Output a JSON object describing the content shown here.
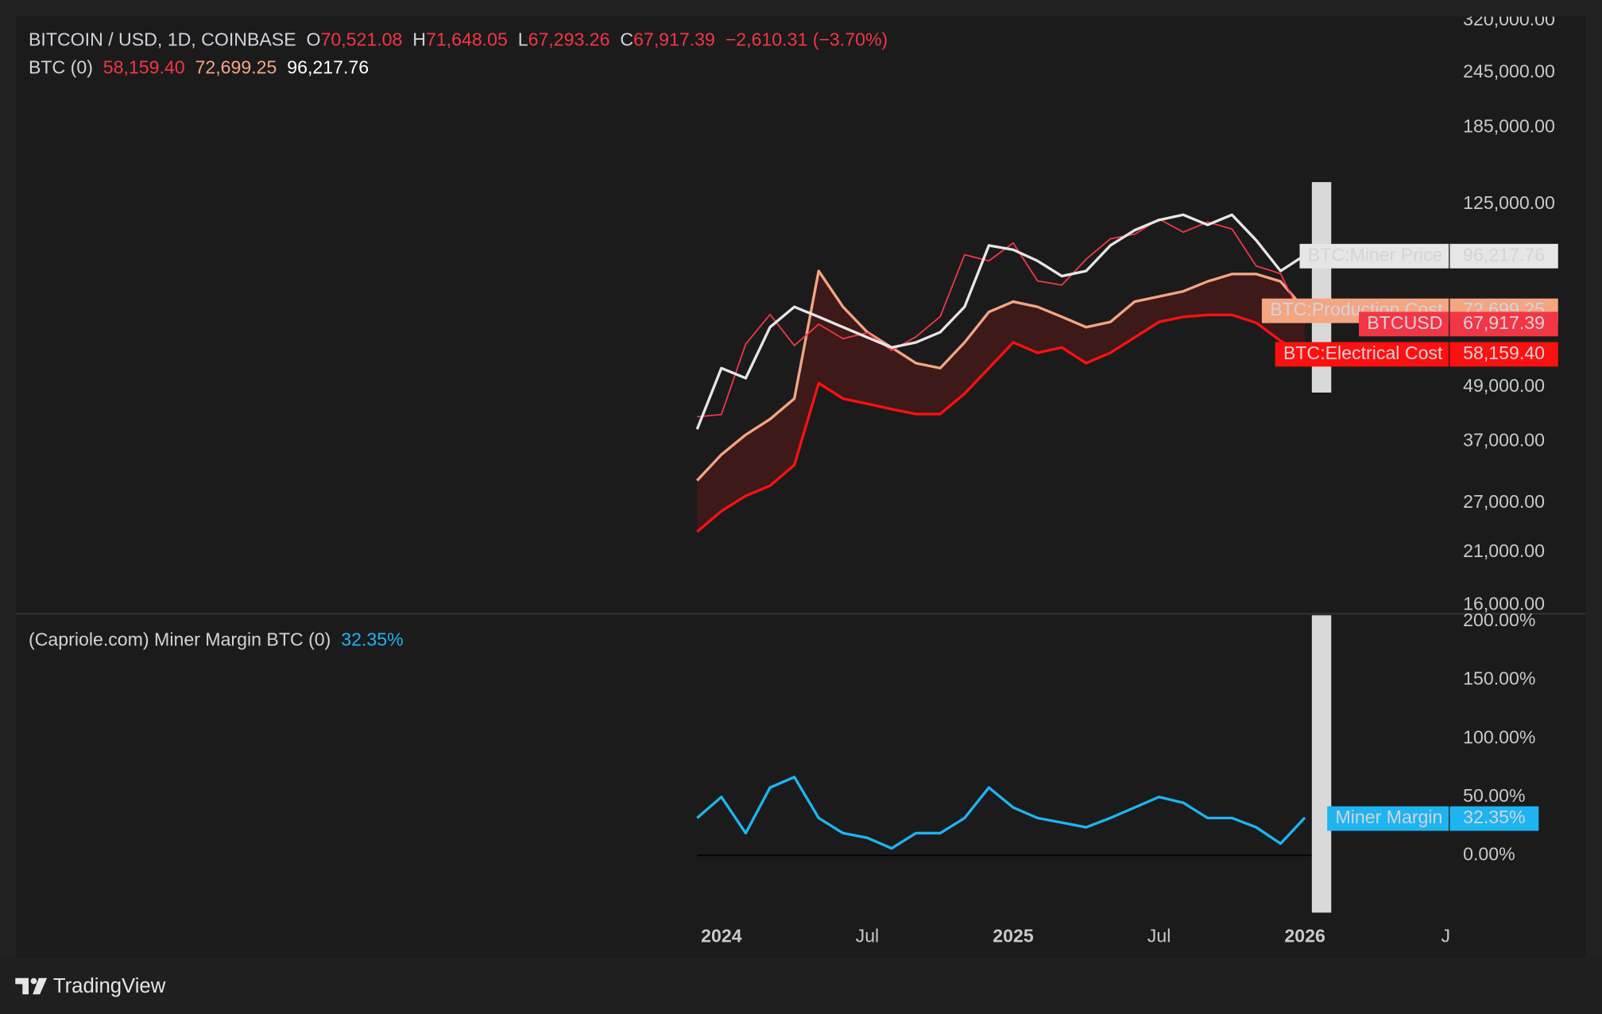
{
  "chart_data": [
    {
      "type": "line",
      "title": "BITCOIN / USD, 1D, COINBASE",
      "ohlc": [
        [
          "O",
          "70,521.08"
        ],
        [
          "H",
          "71,648.05"
        ],
        [
          "L",
          "67,293.26"
        ],
        [
          "C",
          "67,917.39"
        ]
      ],
      "change": "−2,610.31 (−3.70%)",
      "indicator": "BTC (0)",
      "log_scale": true,
      "x": [
        "2023-12",
        "2024-01",
        "2024-02",
        "2024-03",
        "2024-04",
        "2024-05",
        "2024-06",
        "2024-07",
        "2024-08",
        "2024-09",
        "2024-10",
        "2024-11",
        "2024-12",
        "2025-01",
        "2025-02",
        "2025-03",
        "2025-04",
        "2025-05",
        "2025-06",
        "2025-07",
        "2025-08",
        "2025-09",
        "2025-10",
        "2025-11",
        "2025-12",
        "2026-01"
      ],
      "xlim": [
        "2021-08",
        "2026-07"
      ],
      "ylim": [
        16000,
        320000
      ],
      "yticks": [
        {
          "value": 16000,
          "label": "16,000.00"
        },
        {
          "value": 21000,
          "label": "21,000.00"
        },
        {
          "value": 27000,
          "label": "27,000.00"
        },
        {
          "value": 37000,
          "label": "37,000.00"
        },
        {
          "value": 49000,
          "label": "49,000.00"
        },
        {
          "value": 125000,
          "label": "125,000.00"
        },
        {
          "value": 185000,
          "label": "185,000.00"
        },
        {
          "value": 245000,
          "label": "245,000.00"
        },
        {
          "value": 320000,
          "label": "320,000.00"
        }
      ],
      "series": [
        {
          "name": "BTC:Miner Price",
          "color": "#e6e6e6",
          "last_value_label": "96,217.76",
          "values": [
            39400,
            53900,
            51200,
            66500,
            73800,
            70100,
            66500,
            63100,
            59900,
            61500,
            64800,
            73800,
            101100,
            98900,
            93400,
            86400,
            88700,
            101100,
            109300,
            115200,
            118300,
            112300,
            118300,
            103800,
            88700,
            96217.76
          ]
        },
        {
          "name": "BTC:Production Cost",
          "color": "#f4a582",
          "last_value_label": "72,699.25",
          "values": [
            30300,
            34600,
            38300,
            41500,
            46100,
            88700,
            73800,
            64800,
            59900,
            55300,
            53900,
            61500,
            71900,
            75800,
            73800,
            70100,
            66500,
            68300,
            75800,
            77800,
            79900,
            84100,
            87300,
            87300,
            84100,
            72699.25
          ]
        },
        {
          "name": "BTCUSD",
          "color": "#f23645",
          "last_value_label": "67,917.39",
          "values": [
            42000,
            42500,
            61000,
            71000,
            60500,
            67500,
            62700,
            64600,
            59000,
            63300,
            70200,
            96400,
            93400,
            102400,
            84300,
            82500,
            94200,
            104600,
            107100,
            115800,
            108200,
            114000,
            110000,
            91000,
            87500,
            67917.39
          ]
        },
        {
          "name": "BTC:Electrical Cost",
          "color": "#ff1010",
          "last_value_label": "58,159.40",
          "values": [
            23300,
            25900,
            28000,
            29500,
            32800,
            49900,
            46100,
            44900,
            43700,
            42600,
            42600,
            47300,
            53900,
            61500,
            58300,
            59900,
            55300,
            58300,
            63100,
            68300,
            70100,
            70800,
            70800,
            68000,
            62000,
            58159.4
          ]
        }
      ]
    },
    {
      "type": "line",
      "title": "(Capriole.com) Miner Margin BTC (0)",
      "x": [
        "2023-12",
        "2024-01",
        "2024-02",
        "2024-03",
        "2024-04",
        "2024-05",
        "2024-06",
        "2024-07",
        "2024-08",
        "2024-09",
        "2024-10",
        "2024-11",
        "2024-12",
        "2025-01",
        "2025-02",
        "2025-03",
        "2025-04",
        "2025-05",
        "2025-06",
        "2025-07",
        "2025-08",
        "2025-09",
        "2025-10",
        "2025-11",
        "2025-12",
        "2026-01"
      ],
      "xlim": [
        "2021-08",
        "2026-07"
      ],
      "xticks": [
        {
          "value": "2024-01",
          "label": "2024"
        },
        {
          "value": "2024-07",
          "label": "Jul"
        },
        {
          "value": "2025-01",
          "label": "2025"
        },
        {
          "value": "2025-07",
          "label": "Jul"
        },
        {
          "value": "2026-01",
          "label": "2026"
        },
        {
          "value": "2026-07",
          "label": "Ju"
        }
      ],
      "ylim": [
        -50,
        200
      ],
      "yticks": [
        {
          "value": 0,
          "label": "0.00%"
        },
        {
          "value": 50,
          "label": "50.00%"
        },
        {
          "value": 100,
          "label": "100.00%"
        },
        {
          "value": 150,
          "label": "150.00%"
        },
        {
          "value": 200,
          "label": "200.00%"
        }
      ],
      "series": [
        {
          "name": "Miner Margin",
          "color": "#1eb4f0",
          "last_value_label": "32.35%",
          "values": [
            32,
            50,
            19,
            58,
            67,
            32,
            19,
            15,
            6,
            19,
            19,
            32,
            58,
            41,
            32,
            28,
            24,
            32,
            41,
            50,
            45,
            32,
            32,
            24,
            10,
            32.35
          ]
        }
      ]
    }
  ],
  "footer": "TradingView"
}
